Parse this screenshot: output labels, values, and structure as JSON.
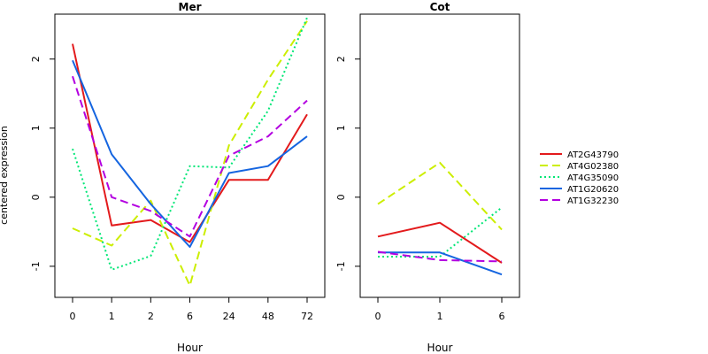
{
  "figure": {
    "ylabel": "centered expression"
  },
  "legend": {
    "position": "right",
    "entries": [
      {
        "name": "AT2G43790",
        "color": "#e31a1c",
        "dash": "solid"
      },
      {
        "name": "AT4G02380",
        "color": "#ccee00",
        "dash": "dashed"
      },
      {
        "name": "AT4G35090",
        "color": "#00e676",
        "dash": "dotted"
      },
      {
        "name": "AT1G20620",
        "color": "#1565e0",
        "dash": "solid"
      },
      {
        "name": "AT1G32230",
        "color": "#b300e0",
        "dash": "dashed"
      }
    ]
  },
  "chart_data": [
    {
      "type": "line",
      "title": "Mer",
      "xlabel": "Hour",
      "ylabel": "centered expression",
      "categories": [
        "0",
        "1",
        "2",
        "6",
        "24",
        "48",
        "72"
      ],
      "ylim": [
        -1.45,
        2.65
      ],
      "yticks": [
        -1,
        0,
        1,
        2
      ],
      "grid": false,
      "series": [
        {
          "name": "AT2G43790",
          "values": [
            2.22,
            -0.41,
            -0.33,
            -0.65,
            0.25,
            0.25,
            1.2
          ]
        },
        {
          "name": "AT4G02380",
          "values": [
            -0.45,
            -0.7,
            -0.05,
            -1.28,
            0.75,
            1.7,
            2.55
          ]
        },
        {
          "name": "AT4G35090",
          "values": [
            0.7,
            -1.05,
            -0.85,
            0.45,
            0.43,
            1.25,
            2.6
          ]
        },
        {
          "name": "AT1G20620",
          "values": [
            1.98,
            0.62,
            -0.1,
            -0.72,
            0.35,
            0.45,
            0.88
          ]
        },
        {
          "name": "AT1G32230",
          "values": [
            1.75,
            0.0,
            -0.2,
            -0.57,
            0.6,
            0.88,
            1.4
          ]
        }
      ]
    },
    {
      "type": "line",
      "title": "Cot",
      "xlabel": "Hour",
      "ylabel": "centered expression",
      "categories": [
        "0",
        "1",
        "6"
      ],
      "ylim": [
        -1.45,
        2.65
      ],
      "yticks": [
        -1,
        0,
        1,
        2
      ],
      "grid": false,
      "series": [
        {
          "name": "AT2G43790",
          "values": [
            -0.57,
            -0.37,
            -0.95
          ]
        },
        {
          "name": "AT4G02380",
          "values": [
            -0.1,
            0.5,
            -0.47
          ]
        },
        {
          "name": "AT4G35090",
          "values": [
            -0.86,
            -0.86,
            -0.15
          ]
        },
        {
          "name": "AT1G20620",
          "values": [
            -0.8,
            -0.8,
            -1.12
          ]
        },
        {
          "name": "AT1G32230",
          "values": [
            -0.79,
            -0.91,
            -0.93
          ]
        }
      ]
    }
  ]
}
